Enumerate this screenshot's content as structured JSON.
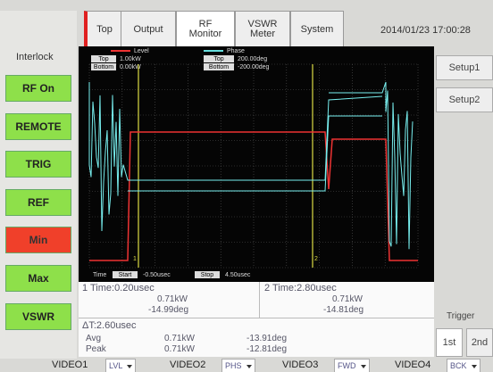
{
  "interlock": {
    "title": "Interlock",
    "buttons": [
      "RF On",
      "REMOTE",
      "TRIG",
      "REF",
      "Min",
      "Max",
      "VSWR"
    ]
  },
  "tabs": [
    {
      "lines": [
        "Top"
      ]
    },
    {
      "lines": [
        "Output"
      ]
    },
    {
      "lines": [
        "RF",
        "Monitor"
      ]
    },
    {
      "lines": [
        "VSWR",
        "Meter"
      ]
    },
    {
      "lines": [
        "System"
      ]
    }
  ],
  "datetime": "2014/01/23 17:00:28",
  "setup": [
    "Setup1",
    "Setup2"
  ],
  "trigger": {
    "title": "Trigger",
    "buttons": [
      "1st",
      "2nd"
    ]
  },
  "graph": {
    "level": {
      "name": "Level",
      "top_label": "Top",
      "top": "1.00kW",
      "bottom_label": "Bottom",
      "bottom": "0.00kW"
    },
    "phase": {
      "name": "Phase",
      "top_label": "Top",
      "top": "200.00deg",
      "bottom_label": "Bottom",
      "bottom": "-200.00deg"
    },
    "time": {
      "label": "Time",
      "start_label": "Start",
      "start": "-0.50usec",
      "stop_label": "Stop",
      "stop": "4.50usec"
    },
    "markers": [
      "1",
      "2"
    ]
  },
  "readout": {
    "marker1": {
      "time": "1 Time:0.20usec",
      "level": "0.71kW",
      "phase": "-14.99deg"
    },
    "marker2": {
      "time": "2 Time:2.80usec",
      "level": "0.71kW",
      "phase": "-14.81deg"
    },
    "delta": "ΔT:2.60usec",
    "avg": {
      "label": "Avg",
      "level": "0.71kW",
      "phase": "-13.91deg"
    },
    "peak": {
      "label": "Peak",
      "level": "0.71kW",
      "phase": "-12.81deg"
    }
  },
  "video": [
    {
      "name": "VIDEO1",
      "value": "LVL"
    },
    {
      "name": "VIDEO2",
      "value": "PHS"
    },
    {
      "name": "VIDEO3",
      "value": "FWD"
    },
    {
      "name": "VIDEO4",
      "value": "BCK"
    }
  ]
}
